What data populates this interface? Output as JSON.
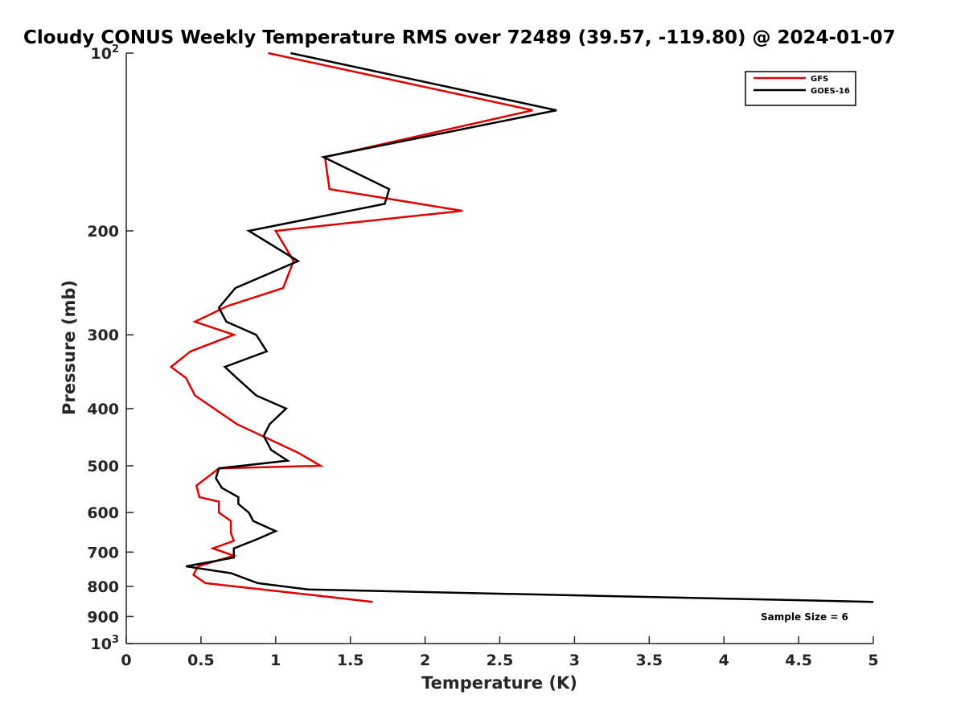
{
  "chart_data": {
    "type": "line",
    "title": "Cloudy CONUS Weekly Temperature RMS over 72489 (39.57, -119.80) @ 2024-01-07",
    "xlabel": "Temperature (K)",
    "ylabel": "Pressure (mb)",
    "xlim": [
      0,
      5
    ],
    "ylim": [
      100,
      1000
    ],
    "y_scale": "log",
    "y_reversed": true,
    "grid": false,
    "legend_position": "top-right",
    "x_ticks": [
      "0",
      "0.5",
      "1",
      "1.5",
      "2",
      "2.5",
      "3",
      "3.5",
      "4",
      "4.5",
      "5"
    ],
    "y_ticks": [
      {
        "value": 100,
        "label": "10",
        "sup": "2"
      },
      {
        "value": 200,
        "label": "200",
        "sup": ""
      },
      {
        "value": 300,
        "label": "300",
        "sup": ""
      },
      {
        "value": 400,
        "label": "400",
        "sup": ""
      },
      {
        "value": 500,
        "label": "500",
        "sup": ""
      },
      {
        "value": 600,
        "label": "600",
        "sup": ""
      },
      {
        "value": 700,
        "label": "700",
        "sup": ""
      },
      {
        "value": 800,
        "label": "800",
        "sup": ""
      },
      {
        "value": 900,
        "label": "900",
        "sup": ""
      },
      {
        "value": 1000,
        "label": "10",
        "sup": "3"
      }
    ],
    "series": [
      {
        "name": "GFS",
        "color": "#e00000",
        "points": [
          [
            0.95,
            100
          ],
          [
            2.72,
            125
          ],
          [
            1.33,
            150
          ],
          [
            1.36,
            170
          ],
          [
            2.25,
            185
          ],
          [
            1.0,
            200
          ],
          [
            1.12,
            225
          ],
          [
            1.05,
            250
          ],
          [
            0.68,
            268
          ],
          [
            0.46,
            285
          ],
          [
            0.72,
            300
          ],
          [
            0.43,
            320
          ],
          [
            0.3,
            340
          ],
          [
            0.4,
            355
          ],
          [
            0.46,
            380
          ],
          [
            0.74,
            425
          ],
          [
            1.15,
            475
          ],
          [
            1.3,
            500
          ],
          [
            0.62,
            505
          ],
          [
            0.47,
            540
          ],
          [
            0.49,
            565
          ],
          [
            0.62,
            575
          ],
          [
            0.62,
            600
          ],
          [
            0.7,
            620
          ],
          [
            0.7,
            650
          ],
          [
            0.72,
            670
          ],
          [
            0.58,
            690
          ],
          [
            0.72,
            710
          ],
          [
            0.48,
            740
          ],
          [
            0.45,
            765
          ],
          [
            0.53,
            790
          ],
          [
            1.2,
            825
          ],
          [
            1.65,
            850
          ]
        ]
      },
      {
        "name": "GOES-16",
        "color": "#000000",
        "points": [
          [
            1.1,
            100
          ],
          [
            2.88,
            125
          ],
          [
            1.32,
            150
          ],
          [
            1.76,
            170
          ],
          [
            1.73,
            180
          ],
          [
            0.82,
            200
          ],
          [
            1.15,
            225
          ],
          [
            0.73,
            250
          ],
          [
            0.62,
            270
          ],
          [
            0.67,
            285
          ],
          [
            0.87,
            300
          ],
          [
            0.94,
            320
          ],
          [
            0.66,
            340
          ],
          [
            0.74,
            355
          ],
          [
            0.87,
            380
          ],
          [
            1.07,
            400
          ],
          [
            0.96,
            425
          ],
          [
            0.92,
            445
          ],
          [
            0.97,
            470
          ],
          [
            1.08,
            490
          ],
          [
            0.62,
            505
          ],
          [
            0.6,
            525
          ],
          [
            0.64,
            545
          ],
          [
            0.75,
            565
          ],
          [
            0.75,
            580
          ],
          [
            0.82,
            600
          ],
          [
            0.85,
            620
          ],
          [
            1.0,
            645
          ],
          [
            0.88,
            665
          ],
          [
            0.72,
            690
          ],
          [
            0.72,
            715
          ],
          [
            0.4,
            740
          ],
          [
            0.7,
            760
          ],
          [
            0.88,
            790
          ],
          [
            1.22,
            810
          ],
          [
            5.0,
            850
          ]
        ]
      }
    ],
    "annotation": "Sample Size = 6"
  }
}
